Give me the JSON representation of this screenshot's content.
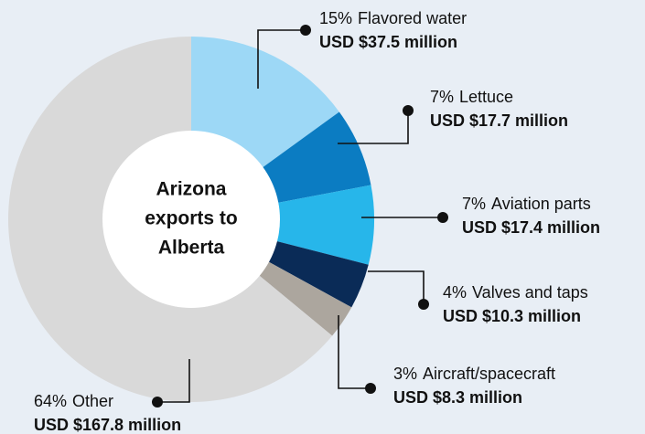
{
  "chart_data": {
    "type": "donut",
    "center_label": [
      "Arizona",
      "exports to",
      "Alberta"
    ],
    "categories": [
      "Flavored water",
      "Lettuce",
      "Aviation parts",
      "Valves and taps",
      "Aircraft/spacecraft",
      "Other"
    ],
    "values": [
      15,
      7,
      7,
      4,
      3,
      64
    ],
    "value_labels": [
      "15%",
      "7%",
      "7%",
      "4%",
      "3%",
      "64%"
    ],
    "amounts": [
      "USD $37.5 million",
      "USD $17.7 million",
      "USD $17.4 million",
      "USD $10.3 million",
      "USD $8.3 million",
      "USD $167.8 million"
    ],
    "colors": [
      "#9dd8f6",
      "#0b7cc2",
      "#27b6ea",
      "#0a2b57",
      "#aca69e",
      "#d9d9d9"
    ]
  }
}
